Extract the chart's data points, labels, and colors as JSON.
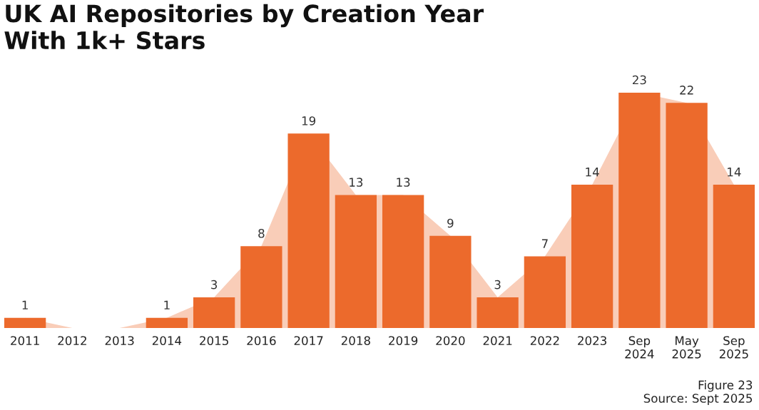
{
  "chart_data": {
    "type": "bar",
    "title": "UK AI Repositories by Creation Year\nWith 1k+ Stars",
    "categories": [
      "2011",
      "2012",
      "2013",
      "2014",
      "2015",
      "2016",
      "2017",
      "2018",
      "2019",
      "2020",
      "2021",
      "2022",
      "2023",
      "Sep\n2024",
      "May\n2025",
      "Sep\n2025"
    ],
    "series": [
      {
        "type": "area",
        "color": "#f9cdb8",
        "values": [
          1,
          0,
          0,
          1,
          3,
          8,
          19,
          13,
          13,
          9,
          3,
          7,
          14,
          23,
          22,
          14
        ]
      },
      {
        "color": "#ec6a2c",
        "values": [
          1,
          0,
          0,
          1,
          3,
          8,
          19,
          13,
          13,
          9,
          3,
          7,
          14,
          23,
          22,
          14
        ],
        "value_labels": [
          "1",
          null,
          null,
          "1",
          "3",
          "8",
          "19",
          "13",
          "13",
          "9",
          "3",
          "7",
          "14",
          "23",
          "22",
          "14"
        ]
      }
    ],
    "grid": false,
    "legend": false,
    "annotations": [
      "Figure 23",
      "Source: Sept 2025"
    ]
  }
}
